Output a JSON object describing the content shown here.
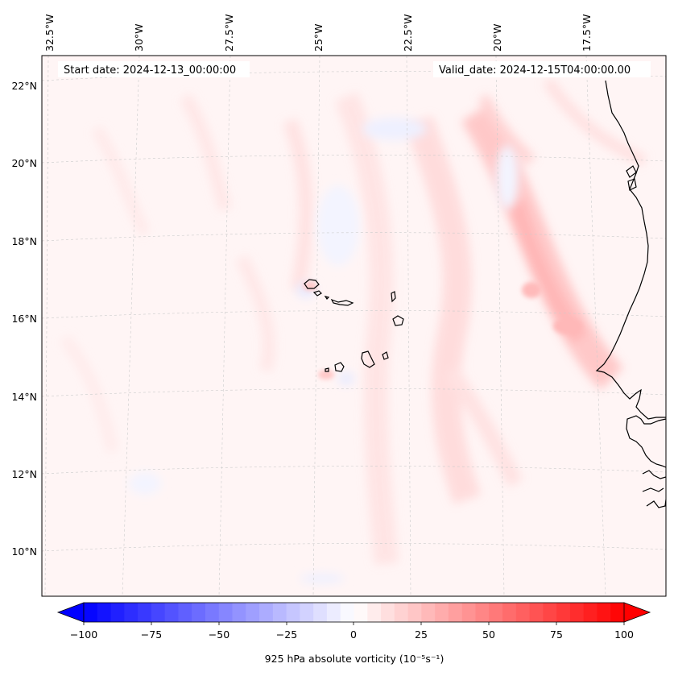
{
  "header": {
    "start_date": "Start date: 2024-12-13_00:00:00",
    "valid_date": "Valid_date: 2024-12-15T04:00:00.00"
  },
  "map": {
    "lon_labels": [
      "32.5°W",
      "30°W",
      "27.5°W",
      "25°W",
      "22.5°W",
      "20°W",
      "17.5°W"
    ],
    "lat_labels": [
      "22°N",
      "20°N",
      "18°N",
      "16°N",
      "14°N",
      "12°N",
      "10°N"
    ],
    "islands": [
      "Santo Antão",
      "São Vicente",
      "São Nicolau",
      "Sal",
      "Boa Vista",
      "Fogo",
      "Brava",
      "Santiago",
      "Maio"
    ],
    "coastline": "West Africa coast"
  },
  "colorbar": {
    "label": "925 hPa absolute vorticity (10⁻⁵s⁻¹)",
    "ticks": [
      "−100",
      "−75",
      "−50",
      "−25",
      "0",
      "25",
      "50",
      "75",
      "100"
    ],
    "vmin": -100,
    "vmax": 100,
    "levels": 40,
    "color_low": "#0000ff",
    "color_mid": "#ffffff",
    "color_high": "#ff0000"
  }
}
